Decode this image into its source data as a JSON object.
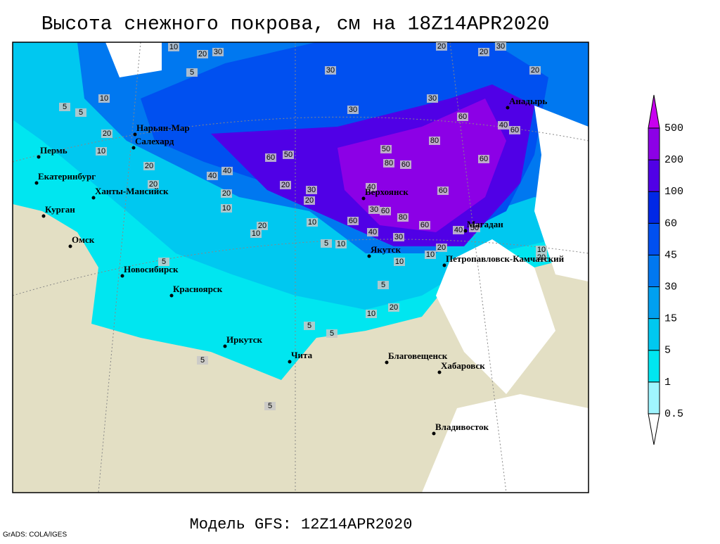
{
  "title": "Высота снежного покрова, см на 18Z14APR2020",
  "footer": "Модель GFS: 12Z14APR2020",
  "credit": "GrADS: COLA/IGES",
  "cities": [
    {
      "name": "Нарьян-Мар"
    },
    {
      "name": "Салехард"
    },
    {
      "name": "Пермь"
    },
    {
      "name": "Екатеринбург"
    },
    {
      "name": "Ханты-Мансийск"
    },
    {
      "name": "Курган"
    },
    {
      "name": "Омск"
    },
    {
      "name": "Новосибирск"
    },
    {
      "name": "Красноярск"
    },
    {
      "name": "Иркутск"
    },
    {
      "name": "Чита"
    },
    {
      "name": "Благовещенск"
    },
    {
      "name": "Хабаровск"
    },
    {
      "name": "Владивосток"
    },
    {
      "name": "Якутск"
    },
    {
      "name": "Верхоянск"
    },
    {
      "name": "Магадан"
    },
    {
      "name": "Петропавловск-Камчатский"
    },
    {
      "name": "Анадырь"
    }
  ],
  "contour_labels": [
    10,
    20,
    30,
    20,
    20,
    30,
    30,
    30,
    30,
    20,
    5,
    10,
    5,
    5,
    20,
    10,
    20,
    40,
    40,
    60,
    50,
    30,
    20,
    20,
    50,
    80,
    60,
    80,
    60,
    40,
    60,
    60,
    60,
    40,
    30,
    60,
    80,
    60,
    40,
    60,
    30,
    40,
    50,
    20,
    10,
    10,
    10,
    20,
    10,
    20,
    10,
    5,
    10,
    5,
    10,
    20,
    5,
    5,
    5,
    5,
    20,
    10,
    20,
    5
  ],
  "colorbar": {
    "levels": [
      0.5,
      1,
      5,
      15,
      30,
      45,
      60,
      100,
      200,
      500
    ],
    "colors": [
      "#ffffff",
      "#a0f5ff",
      "#00e6f0",
      "#00c8f0",
      "#00a0f0",
      "#0078f0",
      "#0050f0",
      "#0028e6",
      "#5000e6",
      "#8c00e6",
      "#c800f0"
    ]
  }
}
